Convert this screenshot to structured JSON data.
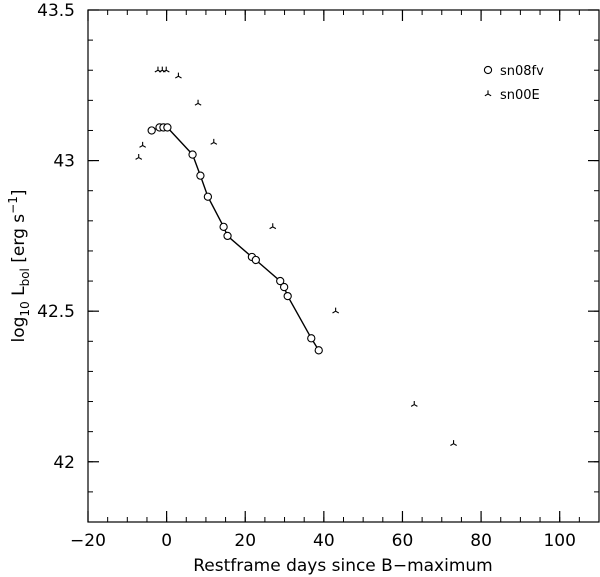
{
  "chart_data": {
    "type": "scatter",
    "xlabel": "Restframe days since B−maximum",
    "ylabel": {
      "prefix": "log",
      "prefix_sub": "10",
      "main": " L",
      "main_sub": "bol",
      "units": " [erg s",
      "units_sup": "−1",
      "units_end": "]"
    },
    "xlim": [
      -20,
      110
    ],
    "ylim": [
      41.8,
      43.5
    ],
    "x_ticks": [
      -20,
      0,
      20,
      40,
      60,
      80,
      100
    ],
    "x_tick_labels": [
      "−20",
      "0",
      "20",
      "40",
      "60",
      "80",
      "100"
    ],
    "y_ticks": [
      42,
      42.5,
      43,
      43.5
    ],
    "y_tick_labels": [
      "42",
      "42.5",
      "43",
      "43.5"
    ],
    "x_minor_step": 5,
    "y_minor_step": 0.1,
    "legend_position": "top-right",
    "series": [
      {
        "name": "sn08fv",
        "marker": "circle",
        "line": true,
        "x": [
          -3.8,
          -1.8,
          -0.8,
          0.2,
          6.6,
          8.6,
          10.5,
          14.5,
          15.5,
          21.7,
          22.7,
          28.9,
          29.9,
          30.8,
          36.8,
          38.7
        ],
        "y": [
          43.1,
          43.11,
          43.11,
          43.11,
          43.02,
          42.95,
          42.88,
          42.78,
          42.75,
          42.68,
          42.67,
          42.6,
          42.58,
          42.55,
          42.41,
          42.37
        ]
      },
      {
        "name": "sn00E",
        "marker": "tripod",
        "line": false,
        "x": [
          -7.1,
          -6.1,
          -2.2,
          -1.1,
          -0.1,
          3.0,
          8.0,
          12.0,
          27.0,
          43.0,
          63.0,
          73.0
        ],
        "y": [
          43.01,
          43.05,
          43.3,
          43.3,
          43.3,
          43.28,
          43.19,
          43.06,
          42.78,
          42.5,
          42.19,
          42.06
        ]
      }
    ]
  }
}
